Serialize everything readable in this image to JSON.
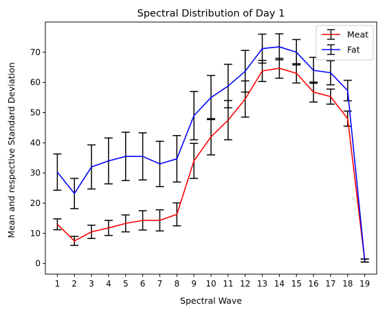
{
  "chart_data": {
    "type": "line",
    "title": "Spectral Distribution of Day 1",
    "xlabel": "Spectral Wave",
    "ylabel": "Mean and respective Standard Deviation",
    "x": [
      1,
      2,
      3,
      4,
      5,
      6,
      7,
      8,
      9,
      10,
      11,
      12,
      13,
      14,
      15,
      16,
      17,
      18,
      19
    ],
    "xlim": [
      0.3,
      19.7
    ],
    "ylim": [
      -3.5,
      80
    ],
    "yticks": [
      0,
      10,
      20,
      30,
      40,
      50,
      60,
      70
    ],
    "grid": false,
    "legend_position": "top-right",
    "error_bars": true,
    "series": [
      {
        "name": "Meat",
        "color": "#ff0000",
        "values": [
          13.0,
          7.5,
          10.5,
          11.8,
          13.3,
          14.3,
          14.3,
          16.3,
          34.0,
          42.0,
          47.5,
          54.5,
          63.8,
          64.7,
          63.0,
          56.8,
          55.3,
          48.0,
          1.0
        ],
        "errors": [
          1.8,
          1.5,
          2.2,
          2.5,
          2.8,
          3.2,
          3.5,
          3.8,
          5.8,
          6.0,
          6.5,
          6.0,
          3.5,
          3.3,
          3.2,
          3.3,
          2.5,
          2.5,
          0.5
        ]
      },
      {
        "name": "Fat",
        "color": "#0000ff",
        "values": [
          30.3,
          23.2,
          32.0,
          34.0,
          35.5,
          35.5,
          33.0,
          34.7,
          49.0,
          55.0,
          58.8,
          63.7,
          71.2,
          71.8,
          70.0,
          64.0,
          63.2,
          57.3,
          1.0
        ],
        "errors": [
          6.0,
          5.0,
          7.3,
          7.6,
          8.0,
          7.8,
          7.5,
          7.7,
          8.0,
          7.3,
          7.2,
          6.9,
          4.8,
          4.3,
          4.2,
          4.3,
          4.0,
          3.4,
          0.5
        ]
      }
    ]
  }
}
